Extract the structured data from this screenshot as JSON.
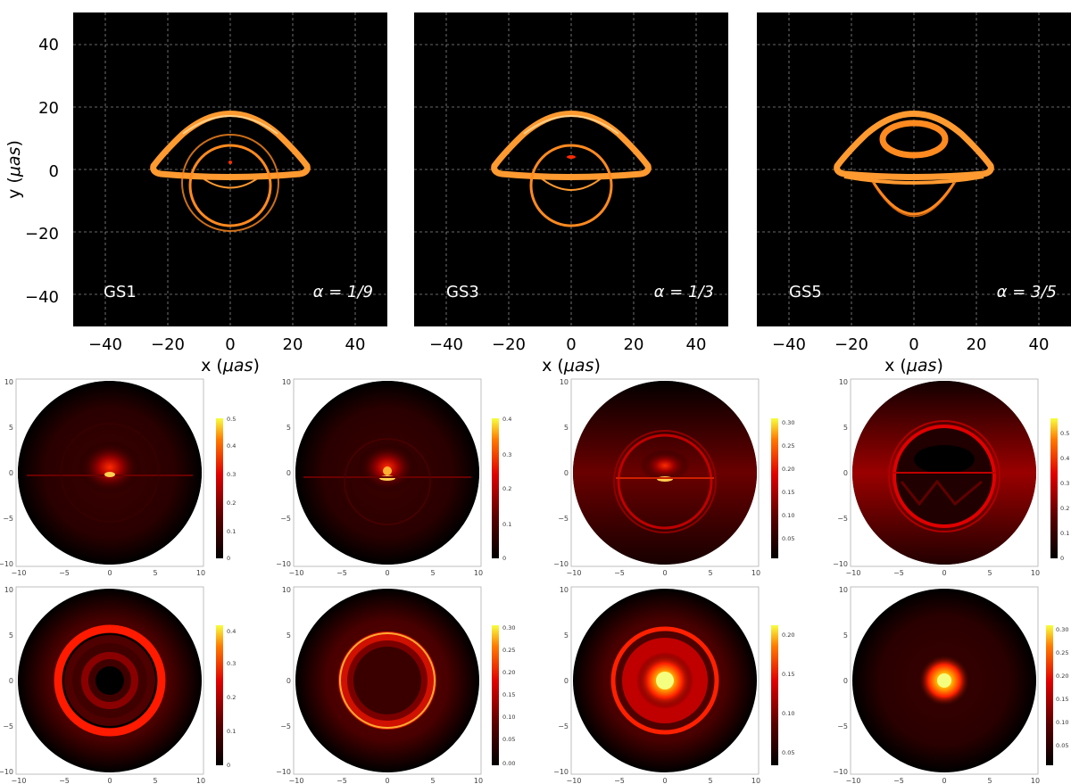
{
  "top_row": {
    "y_axis_label_prefix": "y (",
    "y_axis_label_unit": "μas",
    "x_axis_label_prefix": "x (",
    "x_axis_label_unit": "μas",
    "axis_label_suffix": ")",
    "panels": [
      {
        "model": "GS1",
        "alpha_label": "α = 1/9"
      },
      {
        "model": "GS3",
        "alpha_label": "α = 1/3"
      },
      {
        "model": "GS5",
        "alpha_label": "α = 3/5"
      }
    ],
    "x_ticks": [
      "−40",
      "−20",
      "0",
      "20",
      "40"
    ],
    "y_ticks": [
      "40",
      "20",
      "0",
      "−20",
      "−40"
    ]
  },
  "bottom_grid": {
    "axis_ticks": [
      "10",
      "5",
      "0",
      "−5",
      "−10"
    ],
    "x_axis_ticks": [
      "−10",
      "−5",
      "0",
      "5",
      "10"
    ],
    "row1_colorbars": [
      [
        "0.5",
        "0.4",
        "0.3",
        "0.2",
        "0.1",
        "0"
      ],
      [
        "0.4",
        "0.3",
        "0.2",
        "0.1",
        "0"
      ],
      [
        "0.30",
        "0.25",
        "0.20",
        "0.15",
        "0.10",
        "0.05"
      ],
      [
        "0.5",
        "0.4",
        "0.3",
        "0.2",
        "0.1",
        "0"
      ]
    ],
    "row2_colorbars": [
      [
        "0.4",
        "0.3",
        "0.2",
        "0.1",
        "0"
      ],
      [
        "0.30",
        "0.25",
        "0.20",
        "0.15",
        "0.10",
        "0.05",
        "0.00"
      ],
      [
        "0.20",
        "0.15",
        "0.10",
        "0.05"
      ],
      [
        "0.30",
        "0.25",
        "0.20",
        "0.15",
        "0.10",
        "0.05"
      ]
    ]
  }
}
